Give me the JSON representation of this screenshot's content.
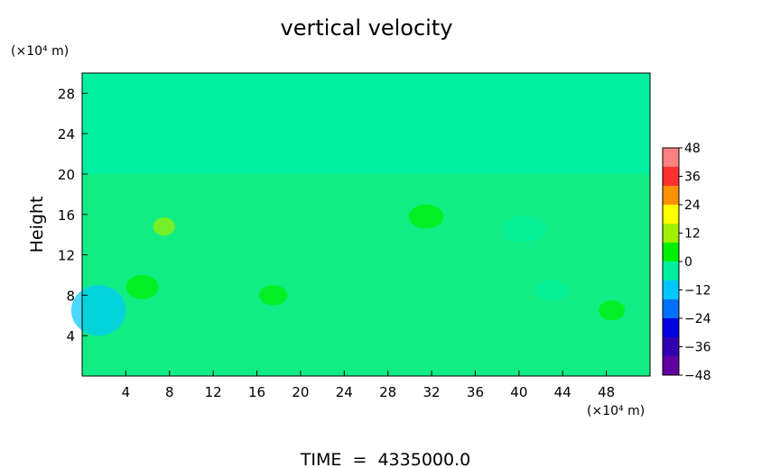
{
  "chart_data": {
    "type": "heatmap",
    "title": "vertical velocity",
    "ylabel": "Height",
    "x_unit": "(×10⁴ m)",
    "y_unit": "(×10⁴ m)",
    "footer": "TIME  =  4335000.0",
    "xlim": [
      0,
      52
    ],
    "ylim": [
      0,
      30
    ],
    "x_ticks": [
      4,
      8,
      12,
      16,
      20,
      24,
      28,
      32,
      36,
      40,
      44,
      48
    ],
    "y_ticks": [
      4,
      8,
      12,
      16,
      20,
      24,
      28
    ],
    "colorbar": {
      "range": [
        -48,
        48
      ],
      "ticks": [
        48,
        36,
        24,
        12,
        0,
        -12,
        -24,
        -36,
        -48
      ],
      "tick_labels": [
        "48",
        "36",
        "24",
        "12",
        "0",
        "−12",
        "−24",
        "−36",
        "−48"
      ],
      "colors": [
        "#ff8080",
        "#ff3030",
        "#ff9000",
        "#ffff00",
        "#a0f000",
        "#00f000",
        "#00f0a0",
        "#00c8ff",
        "#0070ff",
        "#0000e0",
        "#3000b0",
        "#6000a0"
      ]
    },
    "background_value": 0,
    "features": [
      {
        "x": 1.5,
        "y": 6.5,
        "rx": 2.5,
        "ry": 2.5,
        "value": -14
      },
      {
        "x": 7.5,
        "y": 14.8,
        "rx": 1.0,
        "ry": 0.9,
        "value": 10
      },
      {
        "x": 31.5,
        "y": 15.8,
        "rx": 1.6,
        "ry": 1.2,
        "value": 5
      },
      {
        "x": 40.5,
        "y": 14.5,
        "rx": 2.0,
        "ry": 1.3,
        "value": -7
      },
      {
        "x": 48.5,
        "y": 6.5,
        "rx": 1.2,
        "ry": 1.0,
        "value": 5
      },
      {
        "x": 5.5,
        "y": 8.8,
        "rx": 1.5,
        "ry": 1.2,
        "value": 5
      },
      {
        "x": 17.5,
        "y": 8.0,
        "rx": 1.3,
        "ry": 1.0,
        "value": 5
      },
      {
        "x": 43.0,
        "y": 8.5,
        "rx": 1.5,
        "ry": 1.0,
        "value": -5
      }
    ]
  }
}
